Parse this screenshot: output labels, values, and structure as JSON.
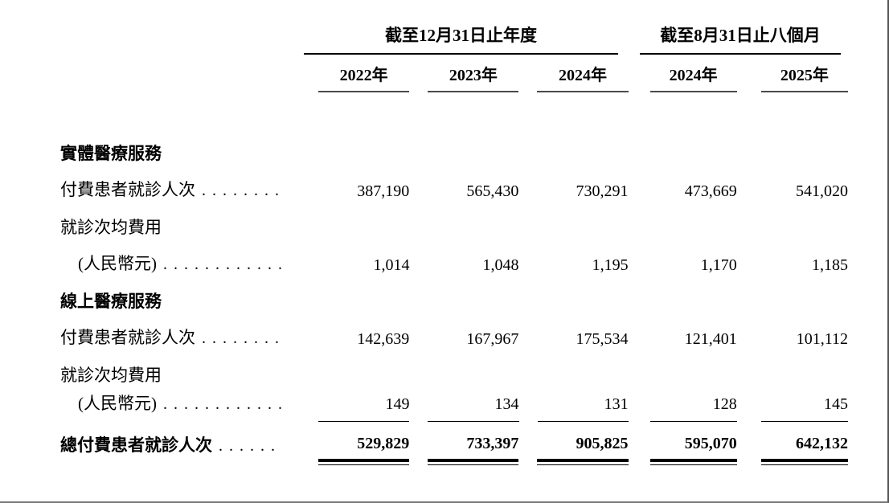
{
  "page": {
    "background": "#ffffff",
    "text_color": "#000000",
    "rule_color": "#000000",
    "year_rule_color": "#4a4a4a",
    "page_edge_color": "#666666"
  },
  "table": {
    "column_groups": [
      {
        "label": "截至12月31日止年度",
        "columns": 3
      },
      {
        "label": "截至8月31日止八個月",
        "columns": 2
      }
    ],
    "year_columns": [
      "2022年",
      "2023年",
      "2024年",
      "2024年",
      "2025年"
    ],
    "rows": [
      {
        "type": "section",
        "label": "實體醫療服務"
      },
      {
        "type": "data",
        "label": "付費患者就診人次",
        "dots": ". . . . . . . .",
        "values": [
          "387,190",
          "565,430",
          "730,291",
          "473,669",
          "541,020"
        ]
      },
      {
        "type": "label",
        "label": "就診次均費用"
      },
      {
        "type": "data",
        "label": "(人民幣元)",
        "dots": ". . . . . . . . . . . .",
        "values": [
          "1,014",
          "1,048",
          "1,195",
          "1,170",
          "1,185"
        ]
      },
      {
        "type": "section",
        "label": "線上醫療服務"
      },
      {
        "type": "data",
        "label": "付費患者就診人次",
        "dots": ". . . . . . . .",
        "values": [
          "142,639",
          "167,967",
          "175,534",
          "121,401",
          "101,112"
        ]
      },
      {
        "type": "label",
        "label": "就診次均費用"
      },
      {
        "type": "data",
        "label": "(人民幣元)",
        "dots": ". . . . . . . . . . . .",
        "values": [
          "149",
          "134",
          "131",
          "128",
          "145"
        ]
      },
      {
        "type": "total",
        "label": "總付費患者就診人次",
        "dots": ". . . . . .",
        "values": [
          "529,829",
          "733,397",
          "905,825",
          "595,070",
          "642,132"
        ]
      }
    ]
  }
}
